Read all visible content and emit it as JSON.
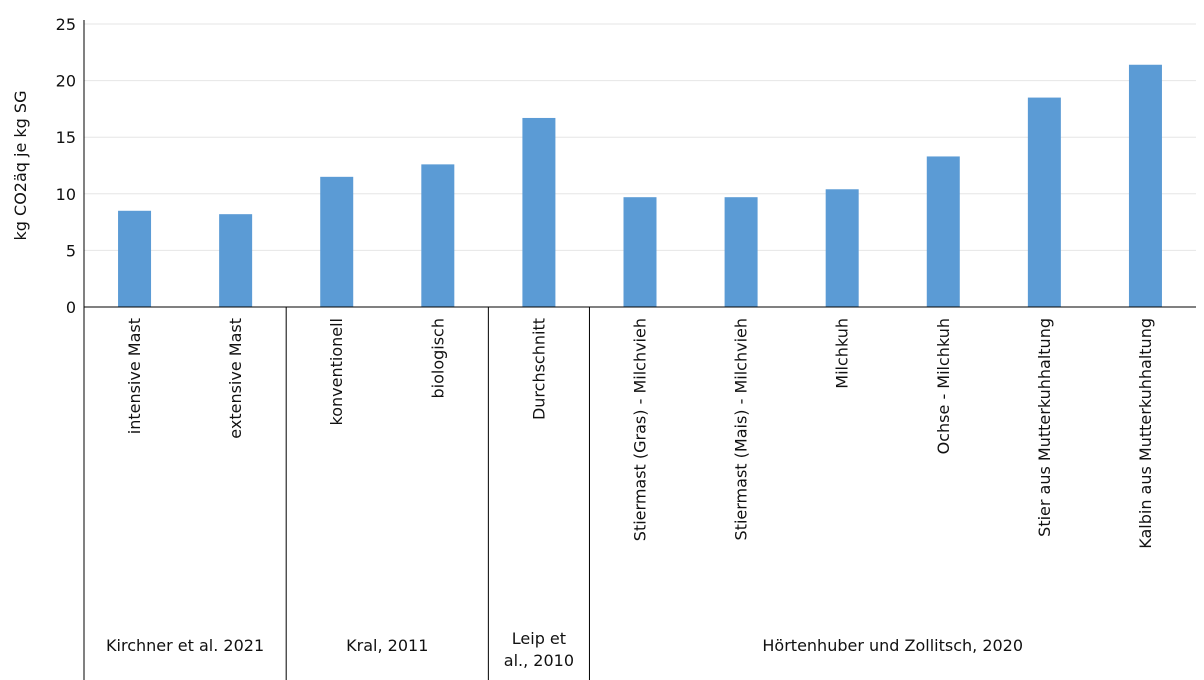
{
  "chart_data": {
    "type": "bar",
    "title": "",
    "ylabel": "kg CO2äq je kg SG",
    "xlabel": "",
    "ylim": [
      0,
      25
    ],
    "yticks": [
      0,
      5,
      10,
      15,
      20,
      25
    ],
    "grid": true,
    "bar_color": "#5b9bd5",
    "categories": [
      "intensive Mast",
      "extensive Mast",
      "konventionell",
      "biologisch",
      "Durchschnitt",
      "Stiermast (Gras) - Milchvieh",
      "Stiermast (Mais) - Milchvieh",
      "Milchkuh",
      "Ochse - Milchkuh",
      "Stier aus Mutterkuhhaltung",
      "Kalbin aus Mutterkuhhaltung"
    ],
    "values": [
      8.5,
      8.2,
      11.5,
      12.6,
      16.7,
      9.7,
      9.7,
      10.4,
      13.3,
      18.5,
      21.4
    ],
    "groups": [
      {
        "label": [
          "Kirchner et al. 2021"
        ],
        "count": 2
      },
      {
        "label": [
          "Kral, 2011"
        ],
        "count": 2
      },
      {
        "label": [
          "Leip et",
          "al., 2010"
        ],
        "count": 1
      },
      {
        "label": [
          "Hörtenhuber und Zollitsch, 2020"
        ],
        "count": 6
      }
    ]
  }
}
